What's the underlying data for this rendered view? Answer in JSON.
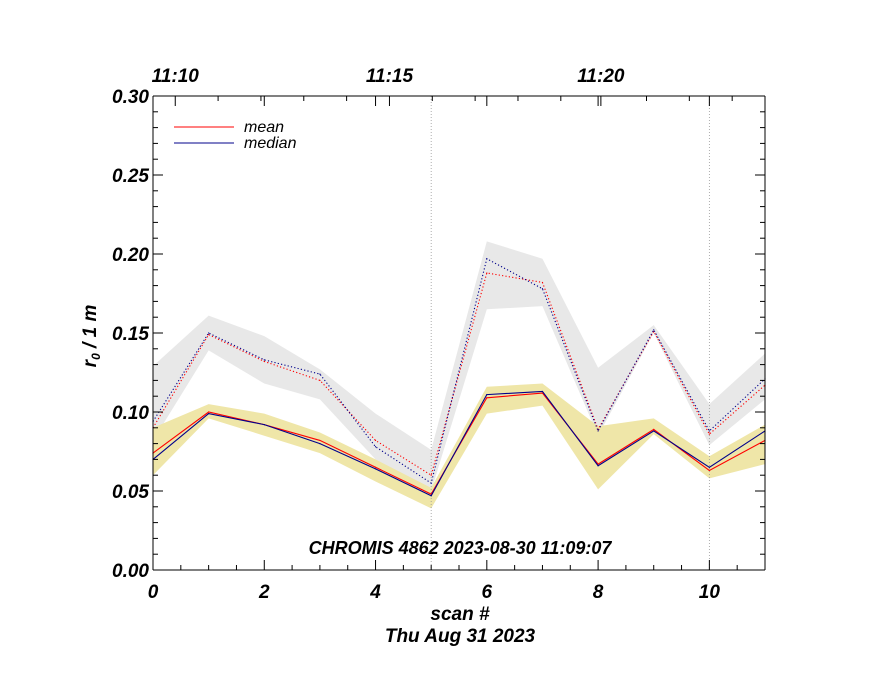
{
  "chart_data": {
    "type": "line",
    "xlabel": "scan #",
    "date_label": "Thu Aug 31 2023",
    "ylabel_main": "r",
    "ylabel_sub": "0",
    "ylabel_rest": " / 1 m",
    "xlim": [
      0,
      11
    ],
    "ylim": [
      0,
      0.3
    ],
    "x_ticks": [
      0,
      2,
      4,
      6,
      8,
      10
    ],
    "x_tick_labels": [
      "0",
      "2",
      "4",
      "6",
      "8",
      "10"
    ],
    "y_ticks": [
      0,
      0.05,
      0.1,
      0.15,
      0.2,
      0.25,
      0.3
    ],
    "y_tick_labels": [
      "0.00",
      "0.05",
      "0.10",
      "0.15",
      "0.20",
      "0.25",
      "0.30"
    ],
    "top_axis": {
      "labels": [
        "11:10",
        "11:15",
        "11:20"
      ],
      "positions": [
        0.4,
        4.25,
        8.05
      ]
    },
    "vertical_guides": [
      5,
      10
    ],
    "annotation": "CHROMIS 4862 2023-08-30 11:09:07",
    "legend": {
      "placement": "top-left",
      "entries": [
        {
          "label": "mean",
          "color": "#ff0000"
        },
        {
          "label": "median",
          "color": "#00008b"
        }
      ]
    },
    "x": [
      0,
      1,
      2,
      3,
      4,
      5,
      6,
      7,
      8,
      9,
      10,
      11
    ],
    "series": [
      {
        "name": "mean",
        "group": "solid",
        "style": "solid",
        "color": "#ff0000",
        "values": [
          0.074,
          0.1,
          0.092,
          0.082,
          0.065,
          0.048,
          0.109,
          0.112,
          0.067,
          0.089,
          0.063,
          0.082
        ]
      },
      {
        "name": "median",
        "group": "solid",
        "style": "solid",
        "color": "#00008b",
        "values": [
          0.07,
          0.099,
          0.092,
          0.08,
          0.064,
          0.047,
          0.111,
          0.113,
          0.066,
          0.088,
          0.065,
          0.088
        ]
      },
      {
        "name": "mean",
        "group": "dotted",
        "style": "dotted",
        "color": "#ff0000",
        "values": [
          0.09,
          0.149,
          0.132,
          0.12,
          0.082,
          0.06,
          0.188,
          0.182,
          0.089,
          0.151,
          0.086,
          0.117
        ]
      },
      {
        "name": "median",
        "group": "dotted",
        "style": "dotted",
        "color": "#00008b",
        "values": [
          0.094,
          0.15,
          0.133,
          0.124,
          0.078,
          0.055,
          0.197,
          0.178,
          0.088,
          0.152,
          0.088,
          0.121
        ]
      }
    ],
    "bands": [
      {
        "color": "#e8e8e8",
        "upper": [
          0.129,
          0.161,
          0.148,
          0.127,
          0.099,
          0.076,
          0.208,
          0.197,
          0.128,
          0.155,
          0.105,
          0.137
        ],
        "lower": [
          0.082,
          0.139,
          0.118,
          0.108,
          0.07,
          0.05,
          0.165,
          0.167,
          0.085,
          0.15,
          0.079,
          0.108
        ]
      },
      {
        "color": "#efe6a8",
        "upper": [
          0.09,
          0.105,
          0.099,
          0.087,
          0.07,
          0.052,
          0.116,
          0.118,
          0.091,
          0.096,
          0.072,
          0.092
        ],
        "lower": [
          0.06,
          0.096,
          0.085,
          0.074,
          0.056,
          0.039,
          0.099,
          0.104,
          0.051,
          0.086,
          0.058,
          0.067
        ]
      }
    ]
  }
}
